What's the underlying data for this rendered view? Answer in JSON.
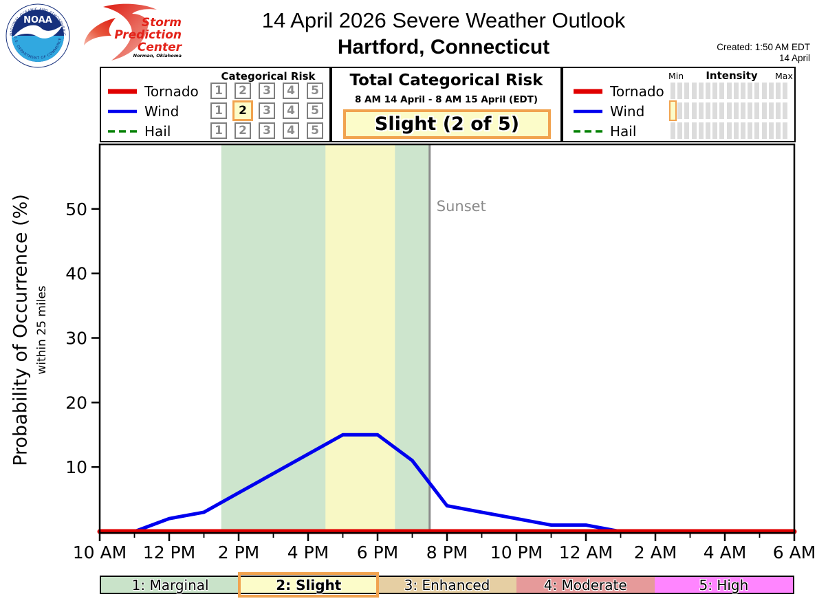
{
  "header": {
    "title": "14 April 2026 Severe Weather Outlook",
    "location": "Hartford, Connecticut",
    "created_line1": "Created: 1:50 AM EDT",
    "created_line2": "14 April",
    "noaa_logo": {
      "name": "NOAA",
      "ring_text_top": "NATIONAL OCEANIC AND ATMOSPHERIC ADMINISTRATION",
      "ring_text_bottom": "U.S. DEPARTMENT OF COMMERCE",
      "navy": "#16307c",
      "light_blue": "#31a8e0"
    },
    "spc_logo": {
      "line1": "Storm",
      "line2": "Prediction",
      "line3": "Center",
      "sub": "Norman, Oklahoma",
      "red": "#e32219"
    }
  },
  "legend": {
    "categorical_risk_title": "Categorical Risk",
    "risk_levels": [
      "1",
      "2",
      "3",
      "4",
      "5"
    ],
    "hazards": [
      {
        "name": "Tornado",
        "color": "#e00000",
        "style": "solid",
        "swatch_thickness": 7,
        "categorical_selected": null,
        "intensity_selected": null
      },
      {
        "name": "Wind",
        "color": "#0000ee",
        "style": "solid",
        "swatch_thickness": 4.5,
        "categorical_selected": 2,
        "intensity_selected": 0
      },
      {
        "name": "Hail",
        "color": "#008000",
        "style": "dashed",
        "swatch_thickness": 3.5,
        "categorical_selected": null,
        "intensity_selected": null
      }
    ],
    "highlight_color": "#f1a34f",
    "highlight_fill": "#fcfcc9",
    "intensity": {
      "title": "Intensity",
      "min_label": "Min",
      "max_label": "Max",
      "bar_count": 17,
      "bar_color": "#dcdcdc"
    }
  },
  "total_risk": {
    "title": "Total Categorical Risk",
    "period": "8 AM 14 April - 8 AM 15 April (EDT)",
    "value": "Slight (2 of 5)"
  },
  "chart_data": {
    "type": "line",
    "ylabel": "Probability of Occurrence (%)",
    "ylabel_sub": "within 25 miles",
    "xlim_hours_after_10am": [
      0,
      20
    ],
    "ylim": [
      0,
      60
    ],
    "yticks": [
      10,
      20,
      30,
      40,
      50
    ],
    "xticks_major_hours": [
      0,
      2,
      4,
      6,
      8,
      10,
      12,
      14,
      16,
      18,
      20
    ],
    "xtick_labels": [
      "10 AM",
      "12 PM",
      "2 PM",
      "4 PM",
      "6 PM",
      "8 PM",
      "10 PM",
      "12 AM",
      "2 AM",
      "4 AM",
      "6 AM"
    ],
    "xticks_minor_hours": [
      1,
      3,
      5,
      7,
      9,
      11,
      13,
      15,
      17,
      19
    ],
    "x_hours": [
      0,
      1,
      2,
      3,
      4,
      5,
      6,
      7,
      8,
      9,
      10,
      11,
      12,
      13,
      14,
      15,
      16,
      17,
      18,
      19,
      20
    ],
    "series": [
      {
        "name": "Wind",
        "color": "#0000ee",
        "width": 5,
        "dash": null,
        "values": [
          0,
          0,
          2,
          3,
          6,
          9,
          12,
          15,
          15,
          11,
          4,
          3,
          2,
          1,
          1,
          0,
          0,
          0,
          0,
          0,
          0
        ]
      },
      {
        "name": "Hail",
        "color": "#008000",
        "width": 3.5,
        "dash": "10,6",
        "values": [
          0,
          0,
          0,
          0,
          0,
          0,
          0,
          0,
          0,
          0,
          0,
          0,
          0,
          0,
          0,
          0,
          0,
          0,
          0,
          0,
          0
        ]
      },
      {
        "name": "Tornado",
        "color": "#e00000",
        "width": 7,
        "dash": null,
        "values": [
          0,
          0,
          0,
          0,
          0,
          0,
          0,
          0,
          0,
          0,
          0,
          0,
          0,
          0,
          0,
          0,
          0,
          0,
          0,
          0,
          0
        ]
      }
    ],
    "bands": [
      {
        "label": "marginal-risk-window",
        "from_hour": 3.5,
        "to_hour": 9.5,
        "color": "#cde5cd"
      },
      {
        "label": "slight-risk-window",
        "from_hour": 6.5,
        "to_hour": 8.5,
        "color": "#f8f8c5"
      }
    ],
    "sunset": {
      "hour": 9.5,
      "label": "Sunset",
      "color": "#8a8a8a"
    },
    "grid": false,
    "legend_position": "top-left-panel"
  },
  "risk_scale": {
    "segments": [
      {
        "label": "1: Marginal",
        "color": "#c9e3c9",
        "selected": false
      },
      {
        "label": "2: Slight",
        "color": "#fcfcc9",
        "selected": true
      },
      {
        "label": "3: Enhanced",
        "color": "#e6cfa3",
        "selected": false
      },
      {
        "label": "4: Moderate",
        "color": "#e69a9a",
        "selected": false
      },
      {
        "label": "5: High",
        "color": "#ff85ff",
        "selected": false
      }
    ]
  }
}
